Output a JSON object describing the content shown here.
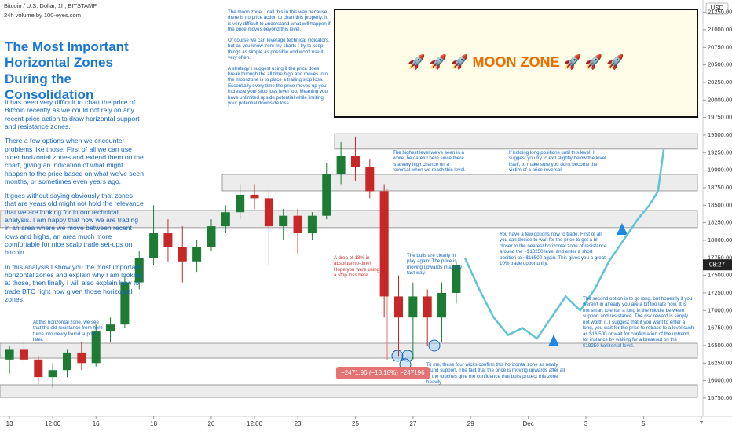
{
  "header": {
    "symbol": "Bitcoin / U.S. Dollar, 1h, BITSTAMP",
    "indicator": "24h volume by 100-eyes.com",
    "currency": "USD"
  },
  "left_text": {
    "title": "The Most Important Horizontal Zones During the Consolidation",
    "paragraphs": [
      "It has been very difficult to chart the price of Bitcoin recently as we could not rely on any recent price action to draw horizontal support and resistance zones.",
      "There a few options when we encounter problems like those. First of all we can use older horizontal zones and extend them on the chart, giving an indication of what might happen to the price based on what we've seen months, or sometimes even years ago.",
      "It goes without saying obviously that zones that are years old might not hold the relevance that we are looking for in our technical analysis. I am happy that now we are trading in an area where we move between recent lows and highs, an area much more comfortable for nice scalp trade set-ups on bitcoin.",
      "In this analysis I show you the most important horizontal zones and explain why I am looking at those, then finally I will also explain how to trade BTC right now given those horizontal zones."
    ]
  },
  "moon_note": [
    "The moon zone. I call this in this way because there is no price action to chart this properly. It is very difficult to understand what will happen if the price moves beyond this level.",
    "Of course we can leverage technical indicators, but as you know from my charts I try to keep things as simple as possible and won't use it very often.",
    "A strategy I suggest using if the price does break through the all time high and moves into the moonzone is to place a trailing stop loss. Essentially every time the price moves up you increase your stop loss level too. Meaning you have unlimited upside potential while limiting your potential downside loss."
  ],
  "moon_zone_label": "🚀 🚀 🚀  MOON ZONE  🚀 🚀 🚀",
  "notes": [
    "At this horizontal zone, we see that the old resistance from here turns into newly found support later.",
    "The highest level we've seen in a while, be careful here since there is a very high chance on a reversal when we reach this level.",
    "If holding long positions until this level, I suggest you try to exit slightly below the level itself, to make sure you don't become the victim of a price reversal.",
    "You have a few options now to trade. First of all you can decide to wait for the price to get a bit closer to the nearest horizontal zone of resistance around the ~$18250 level and enter a short position to ~$16500 again. This gives you a great 10% trade opportunity.",
    "A drop of 13% in absolute no-time! Hope you were using a stop loss here.",
    "The bulls are clearly in play again! The price is moving upwards in a very fast way.",
    "The second option is to go long, but honestly if you weren't in already you are a bit too late now. It is not smart to enter a long in the middle between support and resistance. The risk reward is simply not worth it. I suggest that if you want to enter a long, you wait for the price to retrace to a level such as $16,500 or wait for confirmation of the uptrend for instance by waiting for a breakout on the $18250 horizontal level.",
    "To me, these four wicks confirm this horizontal zone as newly found support. The fact that the price is moving upwards after all of the touches give me confidence that bulls protect this zone heavily."
  ],
  "measure_label": "−2471.96 (−13.18%) −247196",
  "price_label_time": "08:27",
  "chart_data": {
    "type": "candlestick",
    "up_color": "#1e7b34",
    "down_color": "#c62828",
    "projection_color": "#5fc4d6",
    "zone_color": "#ececec",
    "x": [
      13,
      13.5,
      14,
      14.5,
      15,
      15.5,
      16,
      16.5,
      17,
      17.5,
      18,
      18.5,
      19,
      19.5,
      20,
      20.5,
      21,
      21.5,
      22,
      22.5,
      23,
      23.5,
      24,
      24.5,
      25,
      25.5,
      26,
      26.5,
      27,
      27.5,
      28,
      28.5
    ],
    "open": [
      16300,
      16450,
      16300,
      16050,
      16150,
      16400,
      16250,
      16700,
      16800,
      17400,
      17750,
      18100,
      17900,
      17700,
      17900,
      18200,
      18400,
      18650,
      18600,
      18200,
      18350,
      18100,
      18350,
      18950,
      19200,
      19050,
      18700,
      17200,
      16900,
      17200,
      16900,
      17250
    ],
    "high": [
      16500,
      16600,
      16350,
      16250,
      16450,
      16550,
      16800,
      16900,
      17500,
      17850,
      18500,
      18300,
      18200,
      18000,
      18300,
      18500,
      18800,
      18800,
      18700,
      18450,
      18450,
      18400,
      19100,
      19400,
      19480,
      19150,
      18800,
      17500,
      17400,
      17300,
      17400,
      17700
    ],
    "low": [
      16100,
      16250,
      15950,
      15900,
      16050,
      16150,
      16200,
      16550,
      16750,
      17300,
      17650,
      17700,
      17400,
      17550,
      17850,
      18100,
      18300,
      18450,
      17650,
      18000,
      17800,
      18000,
      18300,
      18800,
      18850,
      18600,
      16900,
      16350,
      16300,
      16500,
      16550,
      17100
    ],
    "close": [
      16450,
      16300,
      16050,
      16150,
      16400,
      16250,
      16700,
      16800,
      17400,
      17750,
      18100,
      17900,
      17700,
      17900,
      18200,
      18400,
      18650,
      18600,
      18200,
      18350,
      18100,
      18350,
      18950,
      19200,
      19050,
      18700,
      17200,
      16900,
      17200,
      16900,
      17250,
      17650
    ],
    "projection": {
      "x": [
        28.8,
        29.3,
        29.8,
        30.3,
        30.8,
        31.3,
        31.8,
        32.3,
        32.8,
        33.3,
        33.8,
        34.3,
        34.8,
        35.2,
        35.5,
        35.7
      ],
      "values": [
        17750,
        17300,
        16900,
        16650,
        16750,
        16600,
        16900,
        17200,
        17000,
        17300,
        17700,
        18000,
        18300,
        18500,
        18700,
        19300
      ]
    },
    "zones": [
      [
        19300,
        19520
      ],
      [
        18705,
        18940
      ],
      [
        18180,
        18425
      ],
      [
        16320,
        16533
      ],
      [
        15760,
        15940
      ]
    ],
    "xlim": [
      12.67,
      37.06
    ],
    "ylim": [
      15492,
      21425
    ],
    "xticks": [
      13,
      {
        "value": 14.5,
        "label": "12:00"
      },
      16,
      18,
      20,
      {
        "value": 21.5,
        "label": "12:00"
      },
      23,
      25,
      27,
      29,
      {
        "value": 31,
        "label": "Dec"
      },
      {
        "value": 33,
        "label": "3"
      },
      {
        "value": 35,
        "label": "5"
      },
      {
        "value": 37,
        "label": "7"
      }
    ],
    "yticks": [
      {
        "value": 15750,
        "label": "15750.00"
      },
      {
        "value": 16000,
        "label": "16000.00"
      },
      {
        "value": 16250,
        "label": "16250.00"
      },
      {
        "value": 16500,
        "label": "16500.00"
      },
      {
        "value": 16750,
        "label": "16750.00"
      },
      {
        "value": 17000,
        "label": "17000.00"
      },
      {
        "value": 17250,
        "label": "17250.00"
      },
      {
        "value": 17500,
        "label": "17500.00"
      },
      {
        "value": 17750,
        "label": "17750.00"
      },
      {
        "value": 18000,
        "label": "18000.00"
      },
      {
        "value": 18250,
        "label": "18250.00"
      },
      {
        "value": 18500,
        "label": "18500.00"
      },
      {
        "value": 18750,
        "label": "18750.00"
      },
      {
        "value": 19000,
        "label": "19000.00"
      },
      {
        "value": 19250,
        "label": "19250.00"
      },
      {
        "value": 19500,
        "label": "19500.00"
      },
      {
        "value": 19750,
        "label": "19750.00"
      },
      {
        "value": 20000,
        "label": "20000.00"
      },
      {
        "value": 20250,
        "label": "20250.00"
      },
      {
        "value": 20500,
        "label": "20500.00"
      },
      {
        "value": 20750,
        "label": "20750.00"
      },
      {
        "value": 21000,
        "label": "21000.00"
      },
      {
        "value": 21250,
        "label": "21250.00"
      }
    ]
  }
}
